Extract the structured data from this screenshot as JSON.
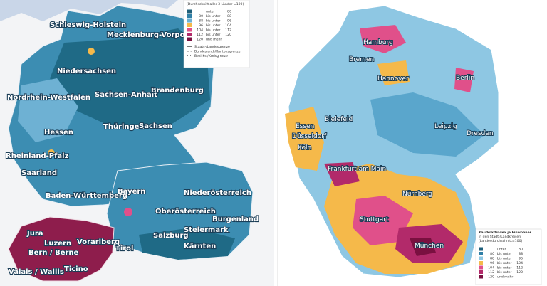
{
  "left_map": {
    "labels": [
      "Schleswig-Holstein",
      "Mecklenburg-Vorpommern",
      "Niedersachsen",
      "Nordrhein-Westfalen",
      "Sachsen-Anhalt",
      "Brandenburg",
      "Hessen",
      "Thüringen",
      "Sachsen",
      "Rheinland-Pfalz",
      "Saarland",
      "Baden-Württemberg",
      "Bayern",
      "Niederösterreich",
      "Oberösterreich",
      "Burgenland",
      "Steiermark",
      "Salzburg",
      "Tirol",
      "Kärnten",
      "Vorarlberg",
      "Jura",
      "Luzern",
      "Bern / Berne",
      "Valais / Wallis",
      "Ticino"
    ],
    "legend": {
      "title": "(Durchschnitt aller 3 Länder =100)",
      "rows": [
        {
          "color": "#1f5f7a",
          "from": "",
          "mid": "unter",
          "to": "80"
        },
        {
          "color": "#2f7fa6",
          "from": "80",
          "mid": "bis unter",
          "to": "88"
        },
        {
          "color": "#6eb1d3",
          "from": "88",
          "mid": "bis unter",
          "to": "96"
        },
        {
          "color": "#f5b94a",
          "from": "96",
          "mid": "bis unter",
          "to": "104"
        },
        {
          "color": "#e0508a",
          "from": "104",
          "mid": "bis unter",
          "to": "112"
        },
        {
          "color": "#b22a6a",
          "from": "112",
          "mid": "bis unter",
          "to": "120"
        },
        {
          "color": "#7a1040",
          "from": "120",
          "mid": "und mehr",
          "to": ""
        }
      ],
      "lines": [
        "Staats-/Landesgrenze",
        "Bundesland-/Kantonsgrenze",
        "Bezirks-/Kreisgrenze"
      ]
    }
  },
  "right_map": {
    "labels": [
      "Hamburg",
      "Bremen",
      "Hannover",
      "Berlin",
      "Bielefeld",
      "Essen",
      "Düsseldorf",
      "Köln",
      "Leipzig",
      "Dresden",
      "Frankfurt am Main",
      "Nürnberg",
      "Stuttgart",
      "München"
    ],
    "legend": {
      "title": [
        "Kaufkraftindex je Einwohner",
        "in den Stadt-/Landkreisen",
        "(Landesdurchschnitt=100)"
      ],
      "rows": [
        {
          "color": "#1f5f7a",
          "from": "",
          "mid": "unter",
          "to": "80"
        },
        {
          "color": "#2f7fa6",
          "from": "80",
          "mid": "bis unter",
          "to": "88"
        },
        {
          "color": "#8ec7e3",
          "from": "88",
          "mid": "bis unter",
          "to": "96"
        },
        {
          "color": "#f5b94a",
          "from": "96",
          "mid": "bis unter",
          "to": "104"
        },
        {
          "color": "#e0508a",
          "from": "104",
          "mid": "bis unter",
          "to": "112"
        },
        {
          "color": "#b22a6a",
          "from": "112",
          "mid": "bis unter",
          "to": "120"
        },
        {
          "color": "#7a1040",
          "from": "120",
          "mid": "und mehr",
          "to": ""
        }
      ]
    }
  }
}
